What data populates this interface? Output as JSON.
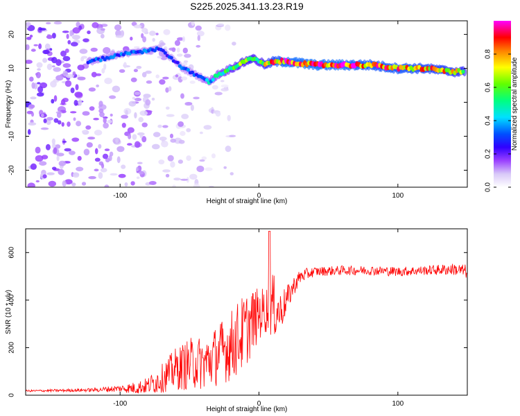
{
  "title": "S225.2025.341.13.23.R19",
  "chart_data": [
    {
      "type": "heatmap",
      "xlabel": "Height of straight line (km)",
      "ylabel": "Frequency (Hz)",
      "xlim": [
        -168,
        150
      ],
      "ylim": [
        -25,
        24
      ],
      "x_ticks": [
        -100,
        0,
        100
      ],
      "y_ticks": [
        -20,
        -10,
        0,
        10,
        20
      ],
      "colorbar": {
        "label": "Normalized spectral amplitude",
        "range": [
          0,
          1
        ],
        "ticks": [
          0.0,
          0.2,
          0.4,
          0.6,
          0.8
        ],
        "colors": [
          "#ffffff",
          "#c8b4f0",
          "#7d00ff",
          "#0000ff",
          "#00ffff",
          "#00ff00",
          "#ffff00",
          "#ff8000",
          "#ff0000",
          "#ff00ff"
        ]
      },
      "ridge": {
        "x": [
          -123,
          -110,
          -100,
          -90,
          -80,
          -72,
          -66,
          -60,
          -55,
          -50,
          -45,
          -40,
          -36,
          -30,
          -25,
          -20,
          -15,
          -10,
          -5,
          0,
          5,
          10,
          20,
          40,
          60,
          80,
          100,
          120,
          140,
          148
        ],
        "frequency": [
          12,
          13,
          14,
          15,
          15,
          16,
          14,
          12,
          10,
          9,
          8,
          7,
          6,
          8,
          9,
          10,
          11,
          12,
          13,
          12,
          11,
          12,
          12,
          11,
          11,
          11,
          10,
          10,
          9,
          9
        ],
        "amplitude": [
          0.35,
          0.35,
          0.35,
          0.35,
          0.35,
          0.3,
          0.3,
          0.3,
          0.35,
          0.35,
          0.35,
          0.4,
          0.45,
          0.5,
          0.55,
          0.6,
          0.65,
          0.65,
          0.7,
          0.6,
          0.75,
          0.85,
          0.95,
          0.95,
          0.95,
          0.9,
          0.9,
          0.85,
          0.8,
          0.75
        ]
      }
    },
    {
      "type": "line",
      "xlabel": "Height of straight line (km)",
      "ylabel": "SNR (10 * v/v)",
      "xlim": [
        -168,
        150
      ],
      "ylim": [
        0,
        700
      ],
      "x_ticks": [
        -100,
        0,
        100
      ],
      "y_ticks": [
        0,
        200,
        400,
        600
      ],
      "series": [
        {
          "color": "#ff0000",
          "x": [
            -168,
            -140,
            -120,
            -100,
            -90,
            -80,
            -75,
            -70,
            -65,
            -60,
            -55,
            -50,
            -45,
            -40,
            -35,
            -30,
            -25,
            -20,
            -15,
            -10,
            -5,
            0,
            5,
            8,
            10,
            12,
            15,
            20,
            25,
            30,
            40,
            60,
            80,
            100,
            120,
            140,
            150
          ],
          "mean": [
            18,
            20,
            22,
            28,
            30,
            40,
            55,
            70,
            90,
            110,
            120,
            130,
            140,
            130,
            150,
            170,
            190,
            210,
            240,
            270,
            310,
            340,
            360,
            370,
            380,
            360,
            350,
            400,
            460,
            500,
            520,
            525,
            525,
            520,
            525,
            530,
            520
          ],
          "spread": [
            4,
            6,
            8,
            15,
            25,
            35,
            50,
            60,
            75,
            90,
            100,
            110,
            115,
            110,
            120,
            130,
            140,
            150,
            160,
            160,
            140,
            110,
            100,
            120,
            140,
            120,
            90,
            60,
            40,
            30,
            20,
            20,
            20,
            20,
            20,
            25,
            30
          ]
        }
      ]
    }
  ]
}
